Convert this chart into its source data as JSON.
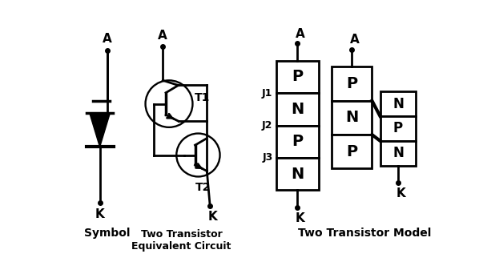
{
  "bg_color": "#ffffff",
  "line_color": "#000000",
  "symbol_label": "Symbol",
  "circuit_label": "Two Transistor\nEquivalent Circuit",
  "model_label": "Two Transistor Model",
  "label_A": "A",
  "label_K": "K",
  "label_T1": "T1",
  "label_T2": "T2",
  "label_J1": "J1",
  "label_J2": "J2",
  "label_J3": "J3",
  "layers_left": [
    "P",
    "N",
    "P",
    "N"
  ],
  "layers_right_main": [
    "P",
    "N",
    "P"
  ],
  "layers_right_small": [
    "N",
    "P",
    "N"
  ]
}
